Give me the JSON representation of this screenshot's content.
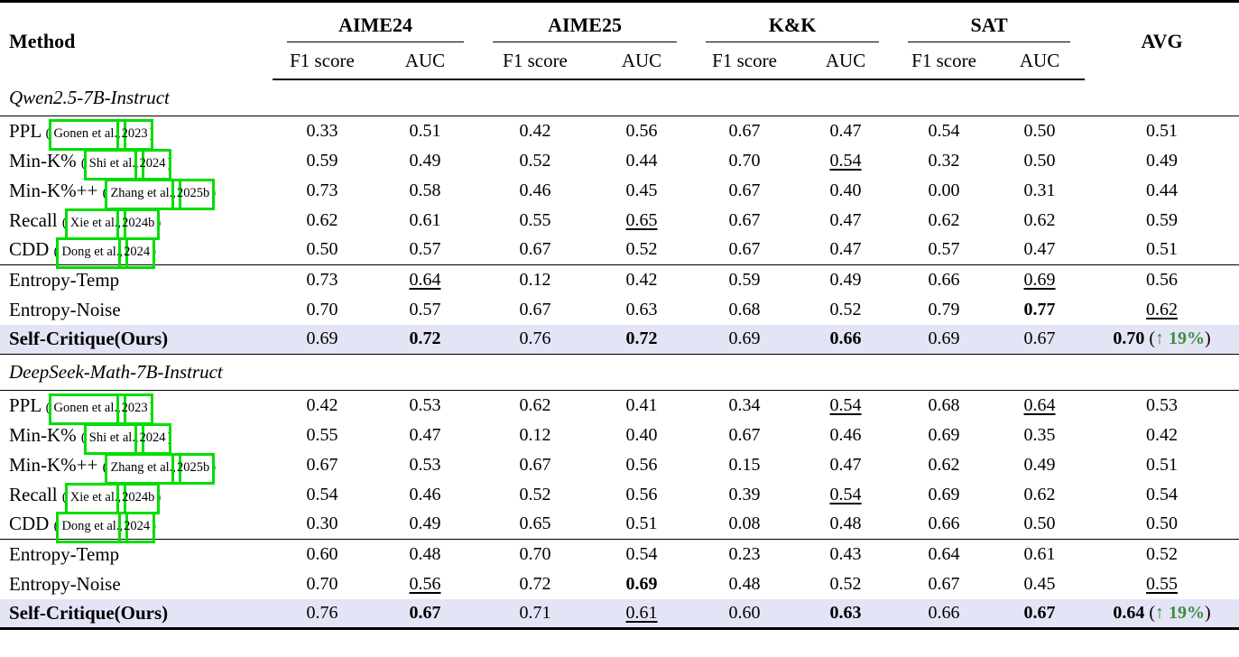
{
  "colors": {
    "highlight_row": "#e4e4f7",
    "gain_green": "#3a8e3c",
    "annotation_green": "#00dd00",
    "rule_black": "#000000"
  },
  "table": {
    "header": {
      "method": "Method",
      "groups": [
        "AIME24",
        "AIME25",
        "K&K",
        "SAT"
      ],
      "f1": "F1 score",
      "auc": "AUC",
      "avg": "AVG"
    },
    "sections": [
      {
        "title": "Qwen2.5-7B-Instruct",
        "rows": [
          {
            "method": "PPL",
            "cite": {
              "open": "(",
              "authors": "Gonen et al.,",
              "year": "2023",
              "close": ")"
            },
            "cells": [
              {
                "v": "0.33"
              },
              {
                "v": "0.51"
              },
              {
                "v": "0.42"
              },
              {
                "v": "0.56"
              },
              {
                "v": "0.67"
              },
              {
                "v": "0.47"
              },
              {
                "v": "0.54"
              },
              {
                "v": "0.50"
              },
              {
                "v": "0.51"
              }
            ]
          },
          {
            "method": "Min-K%",
            "cite": {
              "open": "(",
              "authors": "Shi et al.,",
              "year": "2024",
              "close": ")"
            },
            "cells": [
              {
                "v": "0.59"
              },
              {
                "v": "0.49"
              },
              {
                "v": "0.52"
              },
              {
                "v": "0.44"
              },
              {
                "v": "0.70"
              },
              {
                "v": "0.54",
                "s": "u"
              },
              {
                "v": "0.32"
              },
              {
                "v": "0.50"
              },
              {
                "v": "0.49"
              }
            ]
          },
          {
            "method": "Min-K%++",
            "cite": {
              "open": "(",
              "authors": "Zhang et al.,",
              "year": "2025b",
              "close": ")"
            },
            "cells": [
              {
                "v": "0.73"
              },
              {
                "v": "0.58"
              },
              {
                "v": "0.46"
              },
              {
                "v": "0.45"
              },
              {
                "v": "0.67"
              },
              {
                "v": "0.40"
              },
              {
                "v": "0.00"
              },
              {
                "v": "0.31"
              },
              {
                "v": "0.44"
              }
            ]
          },
          {
            "method": "Recall",
            "cite": {
              "open": "(",
              "authors": "Xie et al.,",
              "year": "2024b",
              "close": ")"
            },
            "cells": [
              {
                "v": "0.62"
              },
              {
                "v": "0.61"
              },
              {
                "v": "0.55"
              },
              {
                "v": "0.65",
                "s": "u"
              },
              {
                "v": "0.67"
              },
              {
                "v": "0.47"
              },
              {
                "v": "0.62"
              },
              {
                "v": "0.62"
              },
              {
                "v": "0.59"
              }
            ]
          },
          {
            "method": "CDD",
            "cite": {
              "open": "(",
              "authors": "Dong et al.,",
              "year": "2024",
              "close": ")"
            },
            "group_end": true,
            "cells": [
              {
                "v": "0.50"
              },
              {
                "v": "0.57"
              },
              {
                "v": "0.67"
              },
              {
                "v": "0.52"
              },
              {
                "v": "0.67"
              },
              {
                "v": "0.47"
              },
              {
                "v": "0.57"
              },
              {
                "v": "0.47"
              },
              {
                "v": "0.51"
              }
            ]
          },
          {
            "method": "Entropy-Temp",
            "cells": [
              {
                "v": "0.73"
              },
              {
                "v": "0.64",
                "s": "u"
              },
              {
                "v": "0.12"
              },
              {
                "v": "0.42"
              },
              {
                "v": "0.59"
              },
              {
                "v": "0.49"
              },
              {
                "v": "0.66"
              },
              {
                "v": "0.69",
                "s": "u"
              },
              {
                "v": "0.56"
              }
            ]
          },
          {
            "method": "Entropy-Noise",
            "cells": [
              {
                "v": "0.70"
              },
              {
                "v": "0.57"
              },
              {
                "v": "0.67"
              },
              {
                "v": "0.63"
              },
              {
                "v": "0.68"
              },
              {
                "v": "0.52"
              },
              {
                "v": "0.79"
              },
              {
                "v": "0.77",
                "s": "b"
              },
              {
                "v": "0.62",
                "s": "u"
              }
            ]
          },
          {
            "method": "Self-Critique(Ours)",
            "bold_label": true,
            "highlight": true,
            "group_end": true,
            "cells": [
              {
                "v": "0.69"
              },
              {
                "v": "0.72",
                "s": "b"
              },
              {
                "v": "0.76"
              },
              {
                "v": "0.72",
                "s": "b"
              },
              {
                "v": "0.69"
              },
              {
                "v": "0.66",
                "s": "b"
              },
              {
                "v": "0.69"
              },
              {
                "v": "0.67"
              },
              {
                "v": "0.70",
                "s": "b"
              }
            ],
            "gain": {
              "open": "(",
              "arrow": "↑",
              "pct": "19%",
              "close": ")"
            }
          }
        ]
      },
      {
        "title": "DeepSeek-Math-7B-Instruct",
        "rows": [
          {
            "method": "PPL",
            "cite": {
              "open": "(",
              "authors": "Gonen et al.,",
              "year": "2023",
              "close": ")"
            },
            "cells": [
              {
                "v": "0.42"
              },
              {
                "v": "0.53"
              },
              {
                "v": "0.62"
              },
              {
                "v": "0.41"
              },
              {
                "v": "0.34"
              },
              {
                "v": "0.54",
                "s": "u"
              },
              {
                "v": "0.68"
              },
              {
                "v": "0.64",
                "s": "u"
              },
              {
                "v": "0.53"
              }
            ]
          },
          {
            "method": "Min-K%",
            "cite": {
              "open": "(",
              "authors": "Shi et al.,",
              "year": "2024",
              "close": ")"
            },
            "cells": [
              {
                "v": "0.55"
              },
              {
                "v": "0.47"
              },
              {
                "v": "0.12"
              },
              {
                "v": "0.40"
              },
              {
                "v": "0.67"
              },
              {
                "v": "0.46"
              },
              {
                "v": "0.69"
              },
              {
                "v": "0.35"
              },
              {
                "v": "0.42"
              }
            ]
          },
          {
            "method": "Min-K%++",
            "cite": {
              "open": "(",
              "authors": "Zhang et al.,",
              "year": "2025b",
              "close": ")"
            },
            "cells": [
              {
                "v": "0.67"
              },
              {
                "v": "0.53"
              },
              {
                "v": "0.67"
              },
              {
                "v": "0.56"
              },
              {
                "v": "0.15"
              },
              {
                "v": "0.47"
              },
              {
                "v": "0.62"
              },
              {
                "v": "0.49"
              },
              {
                "v": "0.51"
              }
            ]
          },
          {
            "method": "Recall",
            "cite": {
              "open": "(",
              "authors": "Xie et al.,",
              "year": "2024b",
              "close": ")"
            },
            "cells": [
              {
                "v": "0.54"
              },
              {
                "v": "0.46"
              },
              {
                "v": "0.52"
              },
              {
                "v": "0.56"
              },
              {
                "v": "0.39"
              },
              {
                "v": "0.54",
                "s": "u"
              },
              {
                "v": "0.69"
              },
              {
                "v": "0.62"
              },
              {
                "v": "0.54"
              }
            ]
          },
          {
            "method": "CDD",
            "cite": {
              "open": "(",
              "authors": "Dong et al.,",
              "year": "2024",
              "close": ")"
            },
            "group_end": true,
            "cells": [
              {
                "v": "0.30"
              },
              {
                "v": "0.49"
              },
              {
                "v": "0.65"
              },
              {
                "v": "0.51"
              },
              {
                "v": "0.08"
              },
              {
                "v": "0.48"
              },
              {
                "v": "0.66"
              },
              {
                "v": "0.50"
              },
              {
                "v": "0.50"
              }
            ]
          },
          {
            "method": "Entropy-Temp",
            "cells": [
              {
                "v": "0.60"
              },
              {
                "v": "0.48"
              },
              {
                "v": "0.70"
              },
              {
                "v": "0.54"
              },
              {
                "v": "0.23"
              },
              {
                "v": "0.43"
              },
              {
                "v": "0.64"
              },
              {
                "v": "0.61"
              },
              {
                "v": "0.52"
              }
            ]
          },
          {
            "method": "Entropy-Noise",
            "cells": [
              {
                "v": "0.70"
              },
              {
                "v": "0.56",
                "s": "u"
              },
              {
                "v": "0.72"
              },
              {
                "v": "0.69",
                "s": "b"
              },
              {
                "v": "0.48"
              },
              {
                "v": "0.52"
              },
              {
                "v": "0.67"
              },
              {
                "v": "0.45"
              },
              {
                "v": "0.55",
                "s": "u"
              }
            ]
          },
          {
            "method": "Self-Critique(Ours)",
            "bold_label": true,
            "highlight": true,
            "cells": [
              {
                "v": "0.76"
              },
              {
                "v": "0.67",
                "s": "b"
              },
              {
                "v": "0.71"
              },
              {
                "v": "0.61",
                "s": "u"
              },
              {
                "v": "0.60"
              },
              {
                "v": "0.63",
                "s": "b"
              },
              {
                "v": "0.66"
              },
              {
                "v": "0.67",
                "s": "b"
              },
              {
                "v": "0.64",
                "s": "b"
              }
            ],
            "gain": {
              "open": "(",
              "arrow": "↑",
              "pct": "19%",
              "close": ")"
            }
          }
        ]
      }
    ]
  }
}
